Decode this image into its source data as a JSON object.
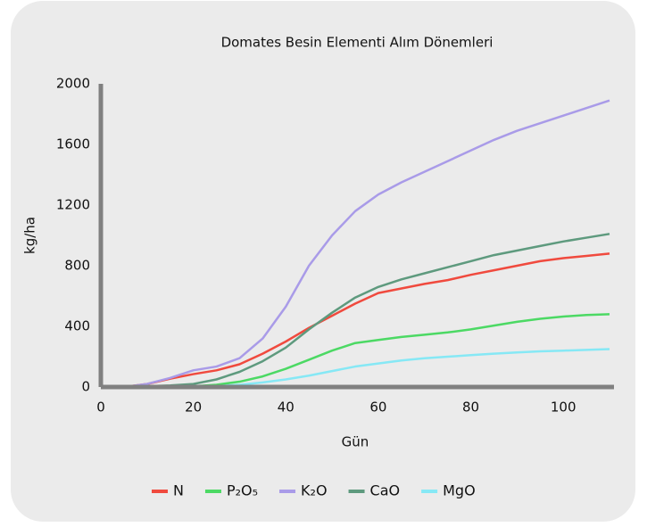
{
  "chart_data": {
    "type": "line",
    "title": "Domates Besin Elementi Alım Dönemleri",
    "xlabel": "Gün",
    "ylabel": "kg/ha",
    "x": [
      0,
      5,
      10,
      15,
      20,
      25,
      30,
      35,
      40,
      45,
      50,
      55,
      60,
      65,
      70,
      75,
      80,
      85,
      90,
      95,
      100,
      105,
      110
    ],
    "xlim": [
      0,
      110
    ],
    "ylim": [
      0,
      2000
    ],
    "xticks": [
      0,
      20,
      40,
      60,
      80,
      100
    ],
    "yticks": [
      0,
      400,
      800,
      1200,
      1600,
      2000
    ],
    "series": [
      {
        "name": "N",
        "color": "#f04a3e",
        "values": [
          0,
          0,
          20,
          55,
          85,
          110,
          150,
          220,
          300,
          390,
          470,
          550,
          620,
          650,
          680,
          705,
          740,
          770,
          800,
          830,
          850,
          865,
          880
        ]
      },
      {
        "name": "P₂O₅",
        "color": "#4cd964",
        "values": [
          0,
          0,
          0,
          0,
          5,
          15,
          35,
          70,
          120,
          180,
          240,
          290,
          310,
          330,
          345,
          360,
          380,
          405,
          430,
          450,
          465,
          475,
          480
        ]
      },
      {
        "name": "K₂O",
        "color": "#a99be8",
        "values": [
          0,
          0,
          20,
          60,
          110,
          135,
          190,
          320,
          530,
          800,
          1000,
          1160,
          1270,
          1350,
          1420,
          1490,
          1560,
          1630,
          1690,
          1740,
          1790,
          1840,
          1890
        ]
      },
      {
        "name": "CaO",
        "color": "#5e9a7e",
        "values": [
          0,
          0,
          5,
          10,
          20,
          50,
          100,
          170,
          260,
          380,
          490,
          590,
          660,
          710,
          750,
          790,
          830,
          870,
          900,
          930,
          960,
          985,
          1010
        ]
      },
      {
        "name": "MgO",
        "color": "#86e8f5",
        "values": [
          0,
          0,
          0,
          0,
          0,
          5,
          15,
          30,
          50,
          75,
          105,
          135,
          155,
          175,
          190,
          200,
          210,
          220,
          228,
          235,
          240,
          245,
          250
        ]
      }
    ]
  }
}
